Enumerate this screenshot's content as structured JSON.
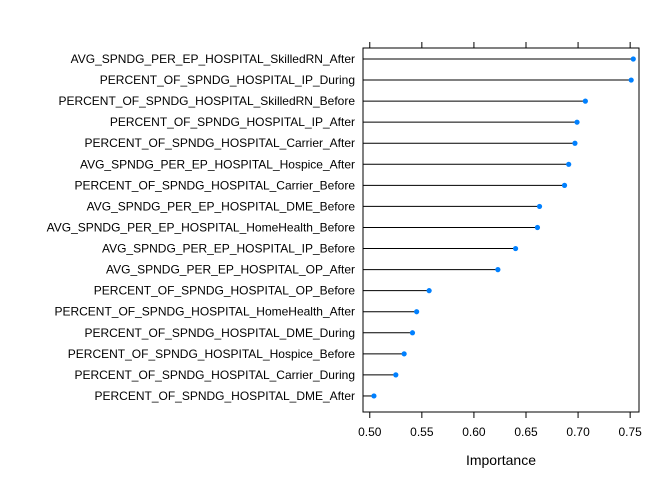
{
  "chart_data": {
    "type": "dotplot",
    "xlabel": "Importance",
    "xlim": [
      0.4935,
      0.7585
    ],
    "xticks": [
      0.5,
      0.55,
      0.6,
      0.65,
      0.7,
      0.75
    ],
    "xtick_labels": [
      "0.50",
      "0.55",
      "0.60",
      "0.65",
      "0.70",
      "0.75"
    ],
    "point_color": "#0080ff",
    "line_color": "#000000",
    "categories": [
      "AVG_SPNDG_PER_EP_HOSPITAL_SkilledRN_After",
      "PERCENT_OF_SPNDG_HOSPITAL_IP_During",
      "PERCENT_OF_SPNDG_HOSPITAL_SkilledRN_Before",
      "PERCENT_OF_SPNDG_HOSPITAL_IP_After",
      "PERCENT_OF_SPNDG_HOSPITAL_Carrier_After",
      "AVG_SPNDG_PER_EP_HOSPITAL_Hospice_After",
      "PERCENT_OF_SPNDG_HOSPITAL_Carrier_Before",
      "AVG_SPNDG_PER_EP_HOSPITAL_DME_Before",
      "AVG_SPNDG_PER_EP_HOSPITAL_HomeHealth_Before",
      "AVG_SPNDG_PER_EP_HOSPITAL_IP_Before",
      "AVG_SPNDG_PER_EP_HOSPITAL_OP_After",
      "PERCENT_OF_SPNDG_HOSPITAL_OP_Before",
      "PERCENT_OF_SPNDG_HOSPITAL_HomeHealth_After",
      "PERCENT_OF_SPNDG_HOSPITAL_DME_During",
      "PERCENT_OF_SPNDG_HOSPITAL_Hospice_Before",
      "PERCENT_OF_SPNDG_HOSPITAL_Carrier_During",
      "PERCENT_OF_SPNDG_HOSPITAL_DME_After"
    ],
    "values": [
      0.753,
      0.751,
      0.707,
      0.699,
      0.697,
      0.691,
      0.687,
      0.663,
      0.661,
      0.64,
      0.623,
      0.557,
      0.545,
      0.541,
      0.533,
      0.525,
      0.504
    ]
  }
}
